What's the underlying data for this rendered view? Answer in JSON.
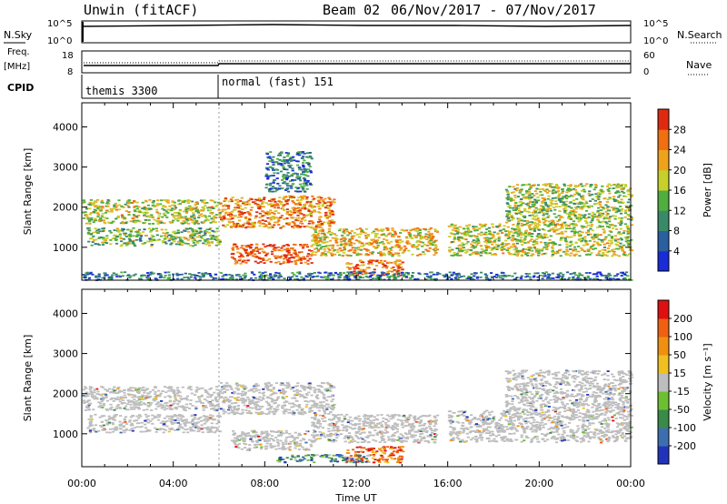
{
  "header": {
    "radar": "Unwin (fitACF)",
    "beam": "Beam 02",
    "date_range": "06/Nov/2017 - 07/Nov/2017"
  },
  "top_panels": {
    "nsky": {
      "left_label": "N.Sky",
      "right_label": "N.Search",
      "ticks": [
        "10^5",
        "10^0"
      ]
    },
    "freq": {
      "left_label": "Freq.",
      "left_unit": "[MHz]",
      "left_ticks": [
        "18",
        "8"
      ],
      "right_label": "Nave",
      "right_ticks": [
        "60",
        "0"
      ]
    },
    "cpid": {
      "label": "CPID",
      "segments": [
        {
          "name": "themis 3300",
          "start_h": 0
        },
        {
          "name": "normal (fast) 151",
          "start_h": 6
        }
      ]
    }
  },
  "chart_data": [
    {
      "type": "heatmap",
      "title": "",
      "quantity": "Power",
      "xlabel": "",
      "ylabel": "Slant Range [km]",
      "xlim_hours": [
        0,
        24
      ],
      "ylim_km": [
        180,
        4600
      ],
      "xticks": [
        "00:00",
        "04:00",
        "08:00",
        "12:00",
        "16:00",
        "20:00",
        "00:00"
      ],
      "yticks": [
        1000,
        2000,
        3000,
        4000
      ],
      "colorbar": {
        "label": "Power [dB]",
        "ticks": [
          "4",
          "8",
          "12",
          "16",
          "20",
          "24",
          "28"
        ],
        "colors": [
          "#1a2bd8",
          "#2a5fa0",
          "#3a8a6a",
          "#4fae3e",
          "#c7cf2a",
          "#f0a21c",
          "#f06f10",
          "#e02a10"
        ]
      },
      "echo_regions": [
        {
          "t0": 0.2,
          "t1": 6.0,
          "r0": 1050,
          "r1": 1500,
          "level": 0.45
        },
        {
          "t0": 0.0,
          "t1": 6.0,
          "r0": 1600,
          "r1": 2200,
          "level": 0.55
        },
        {
          "t0": 6.0,
          "t1": 11.0,
          "r0": 1500,
          "r1": 2300,
          "level": 0.75
        },
        {
          "t0": 6.5,
          "t1": 10.0,
          "r0": 600,
          "r1": 1100,
          "level": 0.9
        },
        {
          "t0": 10.0,
          "t1": 15.5,
          "r0": 800,
          "r1": 1500,
          "level": 0.65
        },
        {
          "t0": 11.5,
          "t1": 14.0,
          "r0": 300,
          "r1": 700,
          "level": 0.8
        },
        {
          "t0": 16.0,
          "t1": 24.0,
          "r0": 800,
          "r1": 1600,
          "level": 0.55
        },
        {
          "t0": 18.5,
          "t1": 24.0,
          "r0": 1600,
          "r1": 2600,
          "level": 0.5
        },
        {
          "t0": 0.0,
          "t1": 24.0,
          "r0": 200,
          "r1": 400,
          "level": 0.25
        },
        {
          "t0": 8.0,
          "t1": 10.0,
          "r0": 2400,
          "r1": 3400,
          "level": 0.25
        }
      ]
    },
    {
      "type": "heatmap",
      "title": "",
      "quantity": "Velocity",
      "xlabel": "Time UT",
      "ylabel": "Slant Range [km]",
      "xlim_hours": [
        0,
        24
      ],
      "ylim_km": [
        180,
        4600
      ],
      "xticks": [
        "00:00",
        "04:00",
        "08:00",
        "12:00",
        "16:00",
        "20:00",
        "00:00"
      ],
      "yticks": [
        1000,
        2000,
        3000,
        4000
      ],
      "colorbar": {
        "label": "Velocity [m s⁻¹]",
        "ticks": [
          "200",
          "100",
          "50",
          "15",
          "-15",
          "-50",
          "-100",
          "-200"
        ],
        "colors": [
          "#2233bb",
          "#3d6fb0",
          "#3a8a4a",
          "#6cc030",
          "#bdbdbd",
          "#f0c020",
          "#f09010",
          "#f06010",
          "#e01010"
        ]
      },
      "echo_regions": [
        {
          "t0": 0.2,
          "t1": 6.0,
          "r0": 1050,
          "r1": 1500,
          "level": 0.5
        },
        {
          "t0": 0.0,
          "t1": 6.0,
          "r0": 1600,
          "r1": 2200,
          "level": 0.5
        },
        {
          "t0": 6.0,
          "t1": 11.0,
          "r0": 1500,
          "r1": 2300,
          "level": 0.5
        },
        {
          "t0": 6.5,
          "t1": 10.0,
          "r0": 600,
          "r1": 1100,
          "level": 0.5
        },
        {
          "t0": 10.0,
          "t1": 15.5,
          "r0": 800,
          "r1": 1500,
          "level": 0.5
        },
        {
          "t0": 11.5,
          "t1": 14.0,
          "r0": 300,
          "r1": 700,
          "level": 0.82
        },
        {
          "t0": 16.0,
          "t1": 24.0,
          "r0": 800,
          "r1": 1600,
          "level": 0.5
        },
        {
          "t0": 18.5,
          "t1": 24.0,
          "r0": 1600,
          "r1": 2600,
          "level": 0.5
        },
        {
          "t0": 8.5,
          "t1": 12.5,
          "r0": 300,
          "r1": 500,
          "level": 0.3
        }
      ]
    }
  ]
}
